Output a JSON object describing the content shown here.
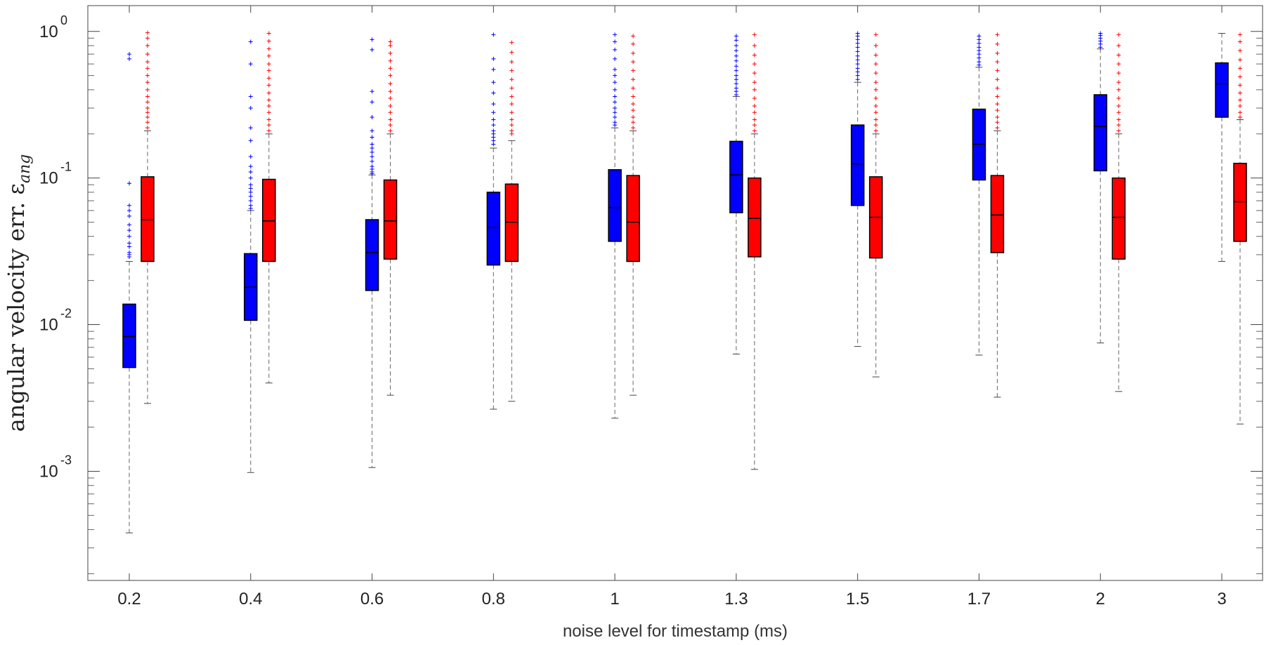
{
  "chart_data": {
    "type": "boxplot",
    "title": "",
    "xlabel": "noise level for timestamp (ms)",
    "ylabel": "angular velocity err. ε",
    "ylabel_subscript": "ang",
    "yscale": "log",
    "ylim": [
      0.00018,
      1.5
    ],
    "y_ticks": [
      {
        "value": 1,
        "base": "10",
        "exp": "0"
      },
      {
        "value": 0.1,
        "base": "10",
        "exp": "-1"
      },
      {
        "value": 0.01,
        "base": "10",
        "exp": "-2"
      },
      {
        "value": 0.001,
        "base": "10",
        "exp": "-3"
      }
    ],
    "categories": [
      "0.2",
      "0.4",
      "0.6",
      "0.8",
      "1",
      "1.3",
      "1.5",
      "1.7",
      "2",
      "3"
    ],
    "series": [
      {
        "name": "blue",
        "color": "#0000ff",
        "boxes": [
          {
            "whislo": 0.00038,
            "q1": 0.0051,
            "med": 0.0083,
            "q3": 0.0138,
            "whishi": 0.027,
            "outliers": [
              0.029,
              0.03,
              0.031,
              0.034,
              0.036,
              0.04,
              0.044,
              0.048,
              0.055,
              0.06,
              0.065,
              0.092,
              0.65,
              0.7
            ]
          },
          {
            "whislo": 0.00098,
            "q1": 0.0107,
            "med": 0.018,
            "q3": 0.0305,
            "whishi": 0.06,
            "outliers": [
              0.062,
              0.065,
              0.07,
              0.075,
              0.08,
              0.085,
              0.09,
              0.1,
              0.11,
              0.12,
              0.14,
              0.18,
              0.22,
              0.3,
              0.36,
              0.6,
              0.85
            ]
          },
          {
            "whislo": 0.00106,
            "q1": 0.0171,
            "med": 0.031,
            "q3": 0.052,
            "whishi": 0.105,
            "outliers": [
              0.107,
              0.11,
              0.115,
              0.12,
              0.13,
              0.14,
              0.15,
              0.16,
              0.17,
              0.19,
              0.21,
              0.26,
              0.33,
              0.39,
              0.75,
              0.88
            ]
          },
          {
            "whislo": 0.00265,
            "q1": 0.0255,
            "med": 0.046,
            "q3": 0.08,
            "whishi": 0.16,
            "outliers": [
              0.17,
              0.18,
              0.19,
              0.2,
              0.21,
              0.23,
              0.25,
              0.28,
              0.32,
              0.38,
              0.45,
              0.55,
              0.65,
              0.95
            ]
          },
          {
            "whislo": 0.0023,
            "q1": 0.037,
            "med": 0.063,
            "q3": 0.114,
            "whishi": 0.22,
            "outliers": [
              0.23,
              0.24,
              0.26,
              0.28,
              0.3,
              0.33,
              0.36,
              0.4,
              0.45,
              0.5,
              0.55,
              0.65,
              0.75,
              0.85,
              0.95
            ]
          },
          {
            "whislo": 0.0063,
            "q1": 0.058,
            "med": 0.105,
            "q3": 0.178,
            "whishi": 0.36,
            "outliers": [
              0.37,
              0.39,
              0.41,
              0.44,
              0.47,
              0.5,
              0.54,
              0.58,
              0.63,
              0.68,
              0.74,
              0.8,
              0.87,
              0.93
            ]
          },
          {
            "whislo": 0.0071,
            "q1": 0.065,
            "med": 0.125,
            "q3": 0.23,
            "whishi": 0.45,
            "outliers": [
              0.47,
              0.5,
              0.53,
              0.56,
              0.6,
              0.64,
              0.68,
              0.73,
              0.78,
              0.83,
              0.88,
              0.93,
              0.97
            ]
          },
          {
            "whislo": 0.0062,
            "q1": 0.097,
            "med": 0.17,
            "q3": 0.295,
            "whishi": 0.57,
            "outliers": [
              0.59,
              0.62,
              0.66,
              0.7,
              0.74,
              0.78,
              0.83,
              0.88,
              0.93
            ]
          },
          {
            "whislo": 0.0075,
            "q1": 0.112,
            "med": 0.225,
            "q3": 0.37,
            "whishi": 0.76,
            "outliers": [
              0.78,
              0.82,
              0.86,
              0.9,
              0.94,
              0.97
            ]
          },
          {
            "whislo": 0.027,
            "q1": 0.26,
            "med": 0.44,
            "q3": 0.61,
            "whishi": 0.97,
            "outliers": []
          }
        ]
      },
      {
        "name": "red",
        "color": "#ff0000",
        "boxes": [
          {
            "whislo": 0.0029,
            "q1": 0.027,
            "med": 0.052,
            "q3": 0.102,
            "whishi": 0.21,
            "outliers": [
              0.22,
              0.24,
              0.26,
              0.28,
              0.3,
              0.33,
              0.36,
              0.4,
              0.45,
              0.5,
              0.56,
              0.62,
              0.7,
              0.8,
              0.9,
              0.98
            ]
          },
          {
            "whislo": 0.004,
            "q1": 0.027,
            "med": 0.051,
            "q3": 0.098,
            "whishi": 0.2,
            "outliers": [
              0.21,
              0.23,
              0.25,
              0.28,
              0.31,
              0.34,
              0.38,
              0.43,
              0.48,
              0.54,
              0.6,
              0.68,
              0.76,
              0.86,
              0.97
            ]
          },
          {
            "whislo": 0.0033,
            "q1": 0.028,
            "med": 0.051,
            "q3": 0.097,
            "whishi": 0.2,
            "outliers": [
              0.21,
              0.23,
              0.25,
              0.28,
              0.31,
              0.35,
              0.39,
              0.44,
              0.5,
              0.56,
              0.63,
              0.71,
              0.8,
              0.85
            ]
          },
          {
            "whislo": 0.003,
            "q1": 0.027,
            "med": 0.05,
            "q3": 0.091,
            "whishi": 0.18,
            "outliers": [
              0.2,
              0.21,
              0.23,
              0.25,
              0.28,
              0.32,
              0.36,
              0.41,
              0.47,
              0.54,
              0.62,
              0.72,
              0.84
            ]
          },
          {
            "whislo": 0.0033,
            "q1": 0.027,
            "med": 0.05,
            "q3": 0.104,
            "whishi": 0.21,
            "outliers": [
              0.22,
              0.24,
              0.26,
              0.29,
              0.32,
              0.36,
              0.41,
              0.47,
              0.54,
              0.62,
              0.71,
              0.82,
              0.93
            ]
          },
          {
            "whislo": 0.00103,
            "q1": 0.029,
            "med": 0.053,
            "q3": 0.1,
            "whishi": 0.2,
            "outliers": [
              0.21,
              0.23,
              0.25,
              0.28,
              0.31,
              0.35,
              0.4,
              0.45,
              0.52,
              0.6,
              0.69,
              0.8,
              0.95
            ]
          },
          {
            "whislo": 0.0044,
            "q1": 0.0285,
            "med": 0.054,
            "q3": 0.102,
            "whishi": 0.2,
            "outliers": [
              0.21,
              0.23,
              0.25,
              0.28,
              0.31,
              0.35,
              0.4,
              0.45,
              0.52,
              0.6,
              0.69,
              0.8,
              0.95
            ]
          },
          {
            "whislo": 0.0032,
            "q1": 0.031,
            "med": 0.056,
            "q3": 0.104,
            "whishi": 0.21,
            "outliers": [
              0.22,
              0.24,
              0.26,
              0.29,
              0.32,
              0.36,
              0.41,
              0.47,
              0.54,
              0.62,
              0.71,
              0.82,
              0.95
            ]
          },
          {
            "whislo": 0.0035,
            "q1": 0.028,
            "med": 0.054,
            "q3": 0.1,
            "whishi": 0.2,
            "outliers": [
              0.21,
              0.23,
              0.25,
              0.28,
              0.31,
              0.35,
              0.4,
              0.45,
              0.52,
              0.6,
              0.69,
              0.8,
              0.95
            ]
          },
          {
            "whislo": 0.0021,
            "q1": 0.037,
            "med": 0.069,
            "q3": 0.126,
            "whishi": 0.25,
            "outliers": [
              0.26,
              0.28,
              0.31,
              0.34,
              0.38,
              0.43,
              0.49,
              0.56,
              0.64,
              0.74,
              0.85,
              0.95
            ]
          }
        ]
      }
    ]
  }
}
